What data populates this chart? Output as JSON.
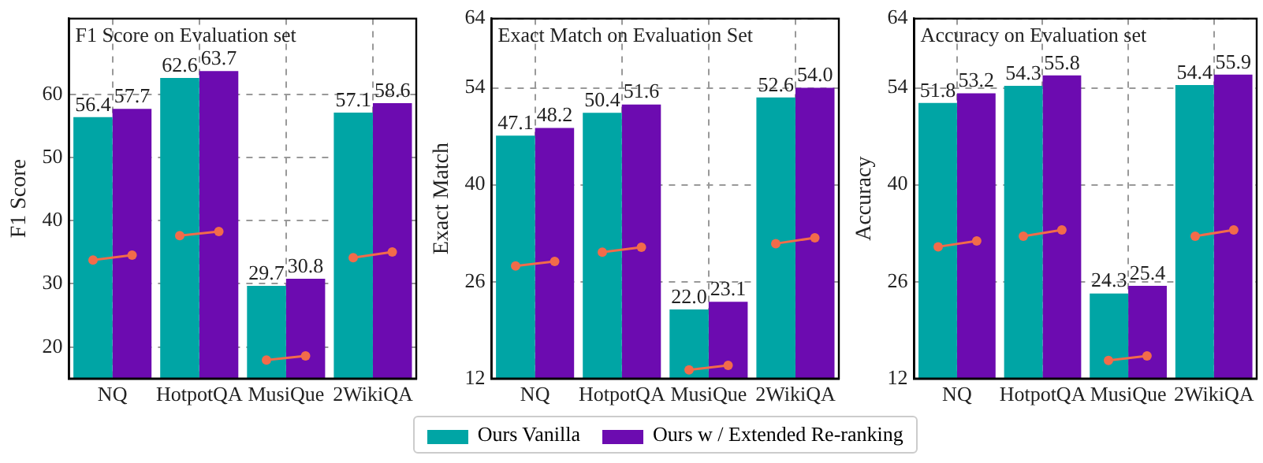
{
  "chart_data": [
    {
      "type": "bar",
      "title": "F1 Score on Evaluation set",
      "ylabel": "F1 Score",
      "categories": [
        "NQ",
        "HotpotQA",
        "MusiQue",
        "2WikiQA"
      ],
      "series": [
        {
          "color": "#00a5a5",
          "values": [
            56.4,
            62.6,
            29.7,
            57.1
          ],
          "value_labels": [
            "56.4",
            "62.6",
            "29.7",
            "57.1"
          ]
        },
        {
          "color": "#6c0bb0",
          "values": [
            57.7,
            63.7,
            30.8,
            58.6
          ],
          "value_labels": [
            "57.7",
            "63.7",
            "30.8",
            "58.6"
          ]
        }
      ],
      "ylim": [
        15,
        72
      ],
      "yticks": [
        20,
        30,
        40,
        50,
        60
      ],
      "grid": true
    },
    {
      "type": "bar",
      "title": "Exact Match on Evaluation Set",
      "ylabel": "Exact Match",
      "categories": [
        "NQ",
        "HotpotQA",
        "MusiQue",
        "2WikiQA"
      ],
      "series": [
        {
          "name": "Ours Vanilla",
          "color": "#00a5a5",
          "values": [
            47.1,
            50.4,
            22.0,
            52.6
          ],
          "value_labels": [
            "47.1",
            "50.4",
            "22.0",
            "52.6"
          ]
        },
        {
          "name": "Ours w / Extended Re-ranking",
          "color": "#6c0bb0",
          "values": [
            48.2,
            51.6,
            23.1,
            54.0
          ],
          "value_labels": [
            "48.2",
            "51.6",
            "23.1",
            "54.0"
          ]
        }
      ],
      "ylim": [
        12,
        64
      ],
      "yticks": [
        12,
        26,
        40,
        54,
        64
      ],
      "grid": true,
      "legend": "bottom"
    },
    {
      "type": "bar",
      "title": "Accuracy on Evaluation set",
      "ylabel": "Accuracy",
      "categories": [
        "NQ",
        "HotpotQA",
        "MusiQue",
        "2WikiQA"
      ],
      "series": [
        {
          "color": "#00a5a5",
          "values": [
            51.8,
            54.3,
            24.3,
            54.4
          ],
          "value_labels": [
            "51.8",
            "54.3",
            "24.3",
            "54.4"
          ]
        },
        {
          "color": "#6c0bb0",
          "values": [
            53.2,
            55.8,
            25.4,
            55.9
          ],
          "value_labels": [
            "53.2",
            "55.8",
            "25.4",
            "55.9"
          ]
        }
      ],
      "ylim": [
        12,
        64
      ],
      "yticks": [
        12,
        26,
        40,
        54,
        64
      ],
      "grid": true
    }
  ]
}
